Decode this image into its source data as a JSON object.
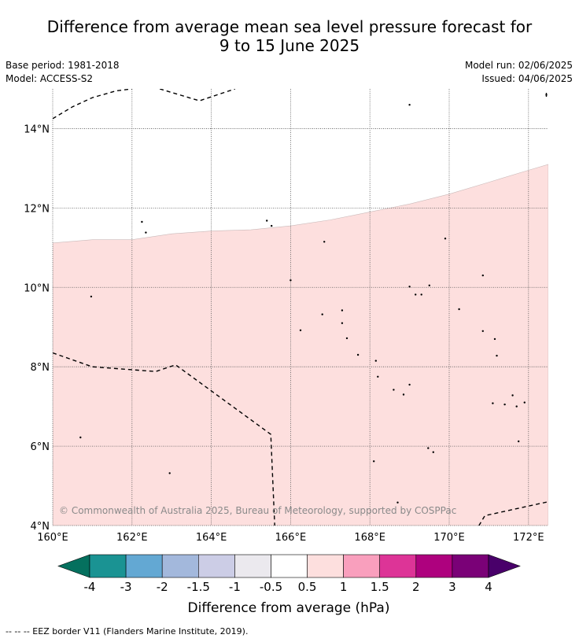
{
  "title_line1": "Difference from average mean sea level pressure forecast for",
  "title_line2": "9 to 15 June 2025",
  "base_period": "Base period: 1981-2018",
  "model": "Model: ACCESS-S2",
  "model_run": "Model run: 02/06/2025",
  "issued": "Issued: 04/06/2025",
  "copyright": "© Commonwealth of Australia 2025, Bureau of Meteorology, supported by COSPPac",
  "map": {
    "lon_range": [
      160,
      172.5
    ],
    "lat_range": [
      4,
      15
    ],
    "lon_ticks": [
      {
        "value": 160,
        "label": "160°E"
      },
      {
        "value": 162,
        "label": "162°E"
      },
      {
        "value": 164,
        "label": "164°E"
      },
      {
        "value": 166,
        "label": "166°E"
      },
      {
        "value": 168,
        "label": "168°E"
      },
      {
        "value": 170,
        "label": "170°E"
      },
      {
        "value": 172,
        "label": "172°E"
      }
    ],
    "lat_ticks": [
      {
        "value": 4,
        "label": "4°N"
      },
      {
        "value": 6,
        "label": "6°N"
      },
      {
        "value": 8,
        "label": "8°N"
      },
      {
        "value": 10,
        "label": "10°N"
      },
      {
        "value": 12,
        "label": "12°N"
      },
      {
        "value": 14,
        "label": "14°N"
      }
    ],
    "anomaly_region": {
      "category": "0.5 to 1",
      "color": "#fddfde",
      "northern_boundary": [
        [
          160,
          11.12
        ],
        [
          161,
          11.2
        ],
        [
          162,
          11.2
        ],
        [
          163,
          11.35
        ],
        [
          164,
          11.42
        ],
        [
          165,
          11.45
        ],
        [
          166,
          11.55
        ],
        [
          167,
          11.7
        ],
        [
          168,
          11.9
        ],
        [
          169,
          12.1
        ],
        [
          170,
          12.35
        ],
        [
          171,
          12.65
        ],
        [
          172,
          12.95
        ],
        [
          172.5,
          13.1
        ]
      ]
    },
    "eez_borders": [
      [
        [
          160,
          14.25
        ],
        [
          160.5,
          14.55
        ],
        [
          161,
          14.78
        ],
        [
          161.6,
          14.95
        ],
        [
          162,
          15.0
        ]
      ],
      [
        [
          162.7,
          15.0
        ],
        [
          163.7,
          14.7
        ],
        [
          164.3,
          14.9
        ],
        [
          164.6,
          15.0
        ]
      ],
      [
        [
          160,
          8.35
        ],
        [
          161,
          8.0
        ],
        [
          162.6,
          7.88
        ],
        [
          163.1,
          8.05
        ],
        [
          165.5,
          6.3
        ],
        [
          165.6,
          4.0
        ]
      ],
      [
        [
          170.75,
          4.0
        ],
        [
          170.9,
          4.25
        ],
        [
          172.5,
          4.6
        ]
      ],
      [
        [
          172.45,
          14.9
        ],
        [
          172.45,
          14.75
        ]
      ]
    ],
    "islands": [
      [
        160.97,
        9.77
      ],
      [
        160.7,
        6.22
      ],
      [
        162.25,
        11.65
      ],
      [
        162.35,
        11.38
      ],
      [
        162.95,
        5.32
      ],
      [
        165.4,
        11.68
      ],
      [
        165.52,
        11.55
      ],
      [
        166.0,
        10.18
      ],
      [
        166.25,
        8.92
      ],
      [
        166.85,
        11.15
      ],
      [
        166.8,
        9.32
      ],
      [
        167.3,
        9.42
      ],
      [
        167.3,
        9.1
      ],
      [
        167.42,
        8.72
      ],
      [
        167.7,
        8.3
      ],
      [
        168.15,
        8.15
      ],
      [
        168.2,
        7.75
      ],
      [
        168.6,
        7.42
      ],
      [
        168.85,
        7.3
      ],
      [
        169.0,
        7.55
      ],
      [
        168.1,
        5.62
      ],
      [
        168.7,
        4.58
      ],
      [
        169.0,
        10.02
      ],
      [
        169.15,
        9.82
      ],
      [
        169.3,
        9.82
      ],
      [
        169.5,
        10.05
      ],
      [
        169.47,
        5.95
      ],
      [
        169.6,
        5.85
      ],
      [
        169.9,
        11.23
      ],
      [
        170.25,
        9.45
      ],
      [
        170.85,
        10.3
      ],
      [
        170.85,
        8.9
      ],
      [
        171.15,
        8.7
      ],
      [
        171.2,
        8.28
      ],
      [
        171.1,
        7.08
      ],
      [
        171.4,
        7.05
      ],
      [
        171.6,
        7.28
      ],
      [
        171.7,
        7.0
      ],
      [
        171.9,
        7.1
      ],
      [
        171.75,
        6.12
      ],
      [
        169.0,
        14.6
      ],
      [
        172.45,
        14.85
      ]
    ]
  },
  "colorbar": {
    "label": "Difference from average (hPa)",
    "tick_labels": [
      "-4",
      "-3",
      "-2",
      "-1.5",
      "-1",
      "-0.5",
      "0.5",
      "1",
      "1.5",
      "2",
      "3",
      "4"
    ],
    "colors": [
      "#1a9393",
      "#63a8d3",
      "#a3b8dc",
      "#cccde6",
      "#ebe9ee",
      "#ffffff",
      "#fddfde",
      "#f99fbd",
      "#dd3497",
      "#ae017e",
      "#7a0177"
    ],
    "extend_low_color": "#05705e",
    "extend_high_color": "#49006a"
  },
  "footer": "--  --  -- EEZ border V11 (Flanders Marine Institute, 2019)."
}
